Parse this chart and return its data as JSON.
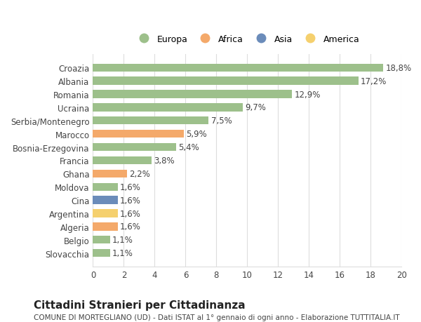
{
  "categories": [
    "Slovacchia",
    "Belgio",
    "Algeria",
    "Argentina",
    "Cina",
    "Moldova",
    "Ghana",
    "Francia",
    "Bosnia-Erzegovina",
    "Marocco",
    "Serbia/Montenegro",
    "Ucraina",
    "Romania",
    "Albania",
    "Croazia"
  ],
  "values": [
    1.1,
    1.1,
    1.6,
    1.6,
    1.6,
    1.6,
    2.2,
    3.8,
    5.4,
    5.9,
    7.5,
    9.7,
    12.9,
    17.2,
    18.8
  ],
  "labels": [
    "1,1%",
    "1,1%",
    "1,6%",
    "1,6%",
    "1,6%",
    "1,6%",
    "2,2%",
    "3,8%",
    "5,4%",
    "5,9%",
    "7,5%",
    "9,7%",
    "12,9%",
    "17,2%",
    "18,8%"
  ],
  "continents": [
    "Europa",
    "Europa",
    "Africa",
    "America",
    "Asia",
    "Europa",
    "Africa",
    "Europa",
    "Europa",
    "Africa",
    "Europa",
    "Europa",
    "Europa",
    "Europa",
    "Europa"
  ],
  "colors": {
    "Europa": "#9dc08b",
    "Africa": "#f4a96a",
    "Asia": "#6b8cba",
    "America": "#f5d06e"
  },
  "legend_items": [
    "Europa",
    "Africa",
    "Asia",
    "America"
  ],
  "legend_colors": [
    "#9dc08b",
    "#f4a96a",
    "#6b8cba",
    "#f5d06e"
  ],
  "title": "Cittadini Stranieri per Cittadinanza",
  "subtitle": "COMUNE DI MORTEGLIANO (UD) - Dati ISTAT al 1° gennaio di ogni anno - Elaborazione TUTTITALIA.IT",
  "xlim": [
    0,
    20
  ],
  "xticks": [
    0,
    2,
    4,
    6,
    8,
    10,
    12,
    14,
    16,
    18,
    20
  ],
  "background_color": "#ffffff",
  "grid_color": "#dddddd",
  "bar_height": 0.6,
  "label_fontsize": 8.5,
  "tick_fontsize": 8.5,
  "title_fontsize": 11,
  "subtitle_fontsize": 7.5
}
